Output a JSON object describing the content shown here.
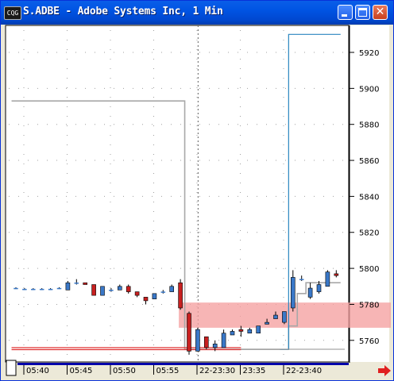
{
  "window": {
    "title": "S.ADBE - Adobe Systems Inc, 1 Min",
    "icon_label": "CQG",
    "min_icon": "minimize-icon",
    "max_icon": "maximize-icon",
    "close_icon": "close-icon",
    "close_glyph": "✕"
  },
  "colors": {
    "plot_bg": "#ffffff",
    "up_candle": "#3a78c8",
    "down_candle": "#c82020",
    "gray_study": "#a8a8a8",
    "blue_study": "#2a86c0",
    "red_study": "#e03030",
    "zone": "#f5a0a0",
    "grid": "#a0a0a0",
    "time_bar": "#0000aa",
    "scroll_arrow": "#e02020"
  },
  "chart_data": {
    "type": "candlestick",
    "ylim": [
      5748,
      5935
    ],
    "y_ticks": [
      5760,
      5780,
      5800,
      5820,
      5840,
      5860,
      5880,
      5900,
      5920
    ],
    "x_ticks": [
      "05:40",
      "05:45",
      "05:50",
      "05:55",
      "22-23:30",
      "23:35",
      "22-23:40"
    ],
    "session_break_after_bar": 21,
    "candles": [
      {
        "o": 5789,
        "h": 5789.5,
        "l": 5788.5,
        "c": 5789
      },
      {
        "o": 5788.5,
        "h": 5789,
        "l": 5788,
        "c": 5788.5
      },
      {
        "o": 5788.5,
        "h": 5789,
        "l": 5788,
        "c": 5788.5
      },
      {
        "o": 5788.5,
        "h": 5789,
        "l": 5788,
        "c": 5788.5
      },
      {
        "o": 5788.5,
        "h": 5789,
        "l": 5788,
        "c": 5788.5
      },
      {
        "o": 5789,
        "h": 5789.5,
        "l": 5788.5,
        "c": 5789
      },
      {
        "o": 5788,
        "h": 5793,
        "l": 5788,
        "c": 5792
      },
      {
        "o": 5792,
        "h": 5794,
        "l": 5791,
        "c": 5792
      },
      {
        "o": 5792,
        "h": 5792,
        "l": 5791,
        "c": 5791
      },
      {
        "o": 5791,
        "h": 5791,
        "l": 5785,
        "c": 5785
      },
      {
        "o": 5785,
        "h": 5790,
        "l": 5785,
        "c": 5790
      },
      {
        "o": 5788,
        "h": 5789,
        "l": 5787,
        "c": 5788
      },
      {
        "o": 5788,
        "h": 5791,
        "l": 5788,
        "c": 5790
      },
      {
        "o": 5790,
        "h": 5791,
        "l": 5786,
        "c": 5787
      },
      {
        "o": 5787,
        "h": 5787,
        "l": 5784,
        "c": 5785
      },
      {
        "o": 5784,
        "h": 5784,
        "l": 5780,
        "c": 5782
      },
      {
        "o": 5783,
        "h": 5786,
        "l": 5783,
        "c": 5786
      },
      {
        "o": 5787,
        "h": 5788,
        "l": 5786,
        "c": 5787
      },
      {
        "o": 5787,
        "h": 5791,
        "l": 5787,
        "c": 5790
      },
      {
        "o": 5792,
        "h": 5794,
        "l": 5777,
        "c": 5778
      },
      {
        "o": 5775,
        "h": 5776,
        "l": 5752,
        "c": 5754
      },
      {
        "o": 5754,
        "h": 5767,
        "l": 5754,
        "c": 5766
      },
      {
        "o": 5762,
        "h": 5762,
        "l": 5755,
        "c": 5756
      },
      {
        "o": 5756,
        "h": 5760,
        "l": 5754,
        "c": 5758
      },
      {
        "o": 5756,
        "h": 5766,
        "l": 5756,
        "c": 5764
      },
      {
        "o": 5763,
        "h": 5766,
        "l": 5763,
        "c": 5765
      },
      {
        "o": 5766,
        "h": 5768,
        "l": 5762,
        "c": 5765
      },
      {
        "o": 5764,
        "h": 5767,
        "l": 5764,
        "c": 5766
      },
      {
        "o": 5764,
        "h": 5768,
        "l": 5764,
        "c": 5768
      },
      {
        "o": 5769,
        "h": 5772,
        "l": 5769,
        "c": 5770
      },
      {
        "o": 5772,
        "h": 5776,
        "l": 5772,
        "c": 5774
      },
      {
        "o": 5770,
        "h": 5776,
        "l": 5769,
        "c": 5776
      },
      {
        "o": 5778,
        "h": 5799,
        "l": 5776,
        "c": 5795
      },
      {
        "o": 5794,
        "h": 5796,
        "l": 5793,
        "c": 5794
      },
      {
        "o": 5784,
        "h": 5792,
        "l": 5783,
        "c": 5789
      },
      {
        "o": 5787,
        "h": 5793,
        "l": 5786,
        "c": 5791
      },
      {
        "o": 5790,
        "h": 5799,
        "l": 5790,
        "c": 5798
      },
      {
        "o": 5797,
        "h": 5799,
        "l": 5795,
        "c": 5796
      }
    ],
    "gray_line": [
      5893,
      5893,
      5893,
      5893,
      5893,
      5893,
      5893,
      5893,
      5893,
      5893,
      5893,
      5893,
      5893,
      5893,
      5893,
      5893,
      5893,
      5893,
      5893,
      5893,
      5755,
      5755,
      5755,
      5755,
      5755,
      5755,
      5755,
      5755,
      5755,
      5755,
      5755,
      5755,
      5768,
      5786,
      5792,
      5792,
      5792,
      5792
    ],
    "blue_line": [
      null,
      null,
      null,
      null,
      null,
      null,
      null,
      null,
      null,
      null,
      null,
      null,
      null,
      null,
      null,
      null,
      null,
      null,
      null,
      null,
      null,
      null,
      null,
      null,
      null,
      null,
      null,
      null,
      null,
      null,
      null,
      5755,
      5930,
      5930,
      5930,
      5930,
      5930,
      5930
    ],
    "red_line": {
      "value": 5755.5,
      "from_bar": 0,
      "to_bar": 26
    },
    "zone": {
      "low": 5767,
      "high": 5781
    }
  }
}
